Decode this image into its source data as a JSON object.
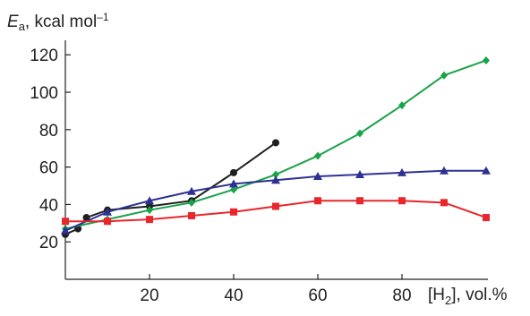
{
  "chart_data": {
    "type": "line",
    "ylabel": {
      "symbol": "E",
      "subscript": "a",
      "text": ", kcal mol",
      "superscript": "–1"
    },
    "xlabel": {
      "text": "[H",
      "subscript": "2",
      "suffix": "], vol.%"
    },
    "xlim": [
      0,
      100
    ],
    "ylim": [
      0,
      128
    ],
    "xticks": [
      20,
      40,
      60,
      80
    ],
    "yticks": [
      20,
      40,
      60,
      80,
      100,
      120
    ],
    "series": [
      {
        "color": "#1f1f1f",
        "marker": "circle",
        "x": [
          0,
          3,
          5,
          10,
          20,
          30,
          40,
          50
        ],
        "values": [
          24,
          27,
          33,
          37,
          39,
          42,
          57,
          73
        ]
      },
      {
        "color": "#1aa34a",
        "marker": "diamond",
        "x": [
          0,
          10,
          20,
          30,
          40,
          50,
          60,
          70,
          80,
          90,
          100
        ],
        "values": [
          27,
          32,
          37,
          41,
          48,
          56,
          66,
          78,
          93,
          109,
          117
        ]
      },
      {
        "color": "#2e3192",
        "marker": "triangle",
        "x": [
          0,
          10,
          20,
          30,
          40,
          50,
          60,
          70,
          80,
          90,
          100
        ],
        "values": [
          26,
          36,
          42,
          47,
          51,
          53,
          55,
          56,
          57,
          58,
          58
        ]
      },
      {
        "color": "#e8262b",
        "marker": "square",
        "x": [
          0,
          10,
          20,
          30,
          40,
          50,
          60,
          70,
          80,
          90,
          100
        ],
        "values": [
          31,
          31,
          32,
          34,
          36,
          39,
          42,
          42,
          42,
          41,
          33
        ]
      }
    ]
  }
}
